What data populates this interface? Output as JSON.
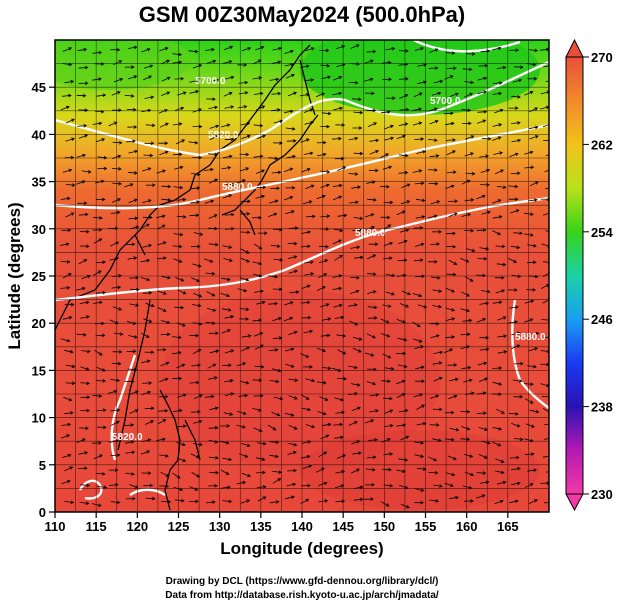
{
  "title": "GSM 00Z30May2024 (500.0hPa)",
  "xlabel": "Longitude (degrees)",
  "ylabel": "Latitude  (degrees)",
  "x_ticks": [
    "110",
    "115",
    "120",
    "125",
    "130",
    "135",
    "140",
    "145",
    "150",
    "155",
    "160",
    "165"
  ],
  "y_ticks": [
    "0",
    "5",
    "10",
    "15",
    "20",
    "25",
    "30",
    "35",
    "40",
    "45"
  ],
  "colorbar": {
    "ticks": [
      "270",
      "262",
      "254",
      "246",
      "238",
      "230"
    ],
    "colors": [
      "#e8503a",
      "#f28a2a",
      "#f2c21a",
      "#b8e21a",
      "#3ad21a",
      "#1ad2a6",
      "#1a9ef2",
      "#1a3af2",
      "#2a12b2",
      "#b21ab2",
      "#f23aa6"
    ]
  },
  "contour_labels": [
    "5700.0",
    "5700.0",
    "5820.0",
    "5880.0",
    "5880.0",
    "5820.0",
    "5880.0"
  ],
  "credits": {
    "line1": "Drawing by DCL (https://www.gfd-dennou.org/library/dcl/)",
    "line2": "Data from http://database.rish.kyoto-u.ac.jp/arch/jmadata/"
  }
}
